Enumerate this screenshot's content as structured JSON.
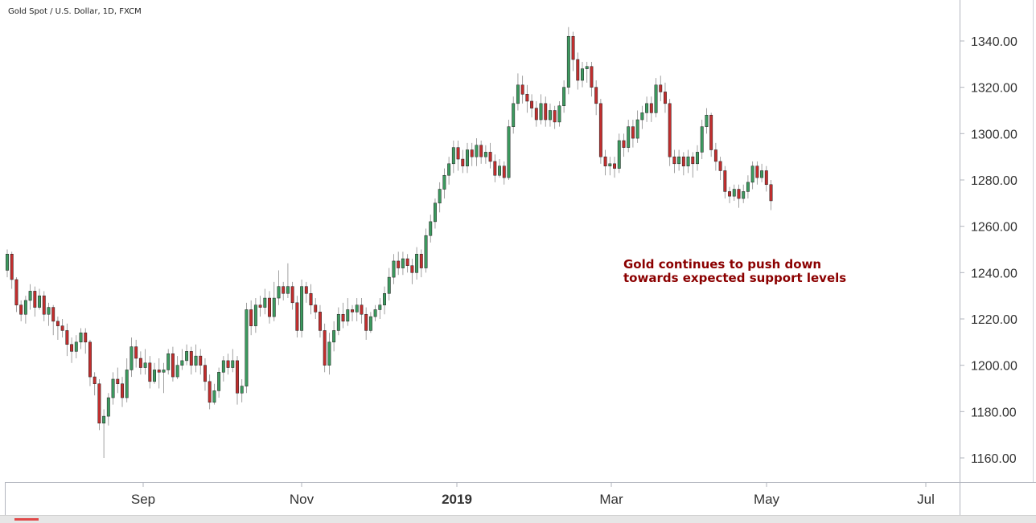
{
  "header": {
    "title": "Gold Spot / U.S. Dollar, 1D, FXCM"
  },
  "annotation": {
    "line1": "Gold continues to push down",
    "line2": "towards expected support levels"
  },
  "colors": {
    "up": "#3c9a5f",
    "down": "#c22e2e",
    "annotation": "#8b0000",
    "grid": "#f0f3fa",
    "axis": "#b2b5be"
  },
  "chart_data": {
    "type": "candlestick",
    "title": "Gold Spot / U.S. Dollar, 1D, FXCM",
    "ylim": [
      1150,
      1350
    ],
    "y_ticks": [
      "1340.00",
      "1320.00",
      "1300.00",
      "1280.00",
      "1260.00",
      "1240.00",
      "1220.00",
      "1200.00",
      "1180.00",
      "1160.00"
    ],
    "x_ticks": [
      "Sep",
      "Nov",
      "2019",
      "Mar",
      "May",
      "Jul"
    ],
    "grid": false,
    "annotations": [
      "Gold continues to push down towards expected support levels"
    ],
    "points": [
      [
        1241,
        1248,
        1250,
        1238
      ],
      [
        1248,
        1237,
        1249,
        1233
      ],
      [
        1237,
        1226,
        1238,
        1223
      ],
      [
        1226,
        1222,
        1228,
        1219
      ],
      [
        1222,
        1228,
        1230,
        1218
      ],
      [
        1228,
        1232,
        1235,
        1224
      ],
      [
        1232,
        1225,
        1234,
        1221
      ],
      [
        1225,
        1230,
        1233,
        1224
      ],
      [
        1230,
        1222,
        1232,
        1219
      ],
      [
        1222,
        1225,
        1227,
        1217
      ],
      [
        1225,
        1219,
        1226,
        1213
      ],
      [
        1219,
        1217,
        1221,
        1211
      ],
      [
        1217,
        1215,
        1220,
        1212
      ],
      [
        1215,
        1209,
        1218,
        1204
      ],
      [
        1209,
        1206,
        1212,
        1201
      ],
      [
        1206,
        1210,
        1213,
        1203
      ],
      [
        1210,
        1214,
        1216,
        1207
      ],
      [
        1214,
        1210,
        1216,
        1205
      ],
      [
        1210,
        1195,
        1211,
        1191
      ],
      [
        1195,
        1192,
        1197,
        1187
      ],
      [
        1192,
        1175,
        1194,
        1172
      ],
      [
        1175,
        1178,
        1181,
        1160
      ],
      [
        1178,
        1186,
        1188,
        1174
      ],
      [
        1186,
        1194,
        1197,
        1183
      ],
      [
        1194,
        1192,
        1199,
        1188
      ],
      [
        1192,
        1186,
        1195,
        1182
      ],
      [
        1186,
        1198,
        1203,
        1184
      ],
      [
        1198,
        1208,
        1212,
        1195
      ],
      [
        1208,
        1203,
        1211,
        1199
      ],
      [
        1203,
        1199,
        1206,
        1196
      ],
      [
        1199,
        1201,
        1207,
        1196
      ],
      [
        1201,
        1193,
        1204,
        1190
      ],
      [
        1193,
        1198,
        1201,
        1192
      ],
      [
        1198,
        1197,
        1203,
        1190
      ],
      [
        1197,
        1198,
        1201,
        1188
      ],
      [
        1198,
        1205,
        1207,
        1196
      ],
      [
        1205,
        1195,
        1208,
        1193
      ],
      [
        1195,
        1200,
        1204,
        1194
      ],
      [
        1200,
        1202,
        1207,
        1198
      ],
      [
        1202,
        1206,
        1209,
        1200
      ],
      [
        1206,
        1200,
        1208,
        1196
      ],
      [
        1200,
        1204,
        1209,
        1197
      ],
      [
        1204,
        1200,
        1207,
        1196
      ],
      [
        1200,
        1193,
        1203,
        1189
      ],
      [
        1193,
        1184,
        1196,
        1181
      ],
      [
        1184,
        1189,
        1192,
        1183
      ],
      [
        1189,
        1197,
        1199,
        1186
      ],
      [
        1197,
        1202,
        1204,
        1193
      ],
      [
        1202,
        1199,
        1205,
        1196
      ],
      [
        1199,
        1202,
        1207,
        1197
      ],
      [
        1202,
        1188,
        1204,
        1183
      ],
      [
        1188,
        1191,
        1194,
        1184
      ],
      [
        1191,
        1224,
        1227,
        1188
      ],
      [
        1224,
        1217,
        1228,
        1213
      ],
      [
        1217,
        1226,
        1229,
        1214
      ],
      [
        1226,
        1225,
        1230,
        1221
      ],
      [
        1225,
        1229,
        1233,
        1222
      ],
      [
        1229,
        1221,
        1232,
        1218
      ],
      [
        1221,
        1229,
        1236,
        1219
      ],
      [
        1229,
        1234,
        1241,
        1226
      ],
      [
        1234,
        1231,
        1236,
        1228
      ],
      [
        1231,
        1234,
        1244,
        1229
      ],
      [
        1234,
        1227,
        1236,
        1224
      ],
      [
        1227,
        1215,
        1230,
        1212
      ],
      [
        1215,
        1234,
        1237,
        1212
      ],
      [
        1234,
        1231,
        1236,
        1227
      ],
      [
        1231,
        1226,
        1235,
        1222
      ],
      [
        1226,
        1223,
        1229,
        1220
      ],
      [
        1223,
        1215,
        1226,
        1212
      ],
      [
        1215,
        1200,
        1218,
        1197
      ],
      [
        1200,
        1210,
        1214,
        1196
      ],
      [
        1210,
        1215,
        1219,
        1206
      ],
      [
        1215,
        1222,
        1225,
        1213
      ],
      [
        1222,
        1219,
        1227,
        1216
      ],
      [
        1219,
        1224,
        1229,
        1217
      ],
      [
        1224,
        1223,
        1226,
        1219
      ],
      [
        1223,
        1226,
        1229,
        1219
      ],
      [
        1226,
        1222,
        1229,
        1218
      ],
      [
        1222,
        1215,
        1225,
        1211
      ],
      [
        1215,
        1221,
        1223,
        1214
      ],
      [
        1221,
        1224,
        1226,
        1219
      ],
      [
        1224,
        1226,
        1229,
        1220
      ],
      [
        1226,
        1231,
        1234,
        1222
      ],
      [
        1231,
        1238,
        1242,
        1228
      ],
      [
        1238,
        1245,
        1248,
        1235
      ],
      [
        1245,
        1242,
        1249,
        1239
      ],
      [
        1242,
        1246,
        1249,
        1239
      ],
      [
        1246,
        1243,
        1248,
        1240
      ],
      [
        1243,
        1240,
        1246,
        1235
      ],
      [
        1240,
        1248,
        1251,
        1237
      ],
      [
        1248,
        1242,
        1250,
        1238
      ],
      [
        1242,
        1256,
        1259,
        1240
      ],
      [
        1256,
        1262,
        1265,
        1253
      ],
      [
        1262,
        1270,
        1272,
        1259
      ],
      [
        1270,
        1276,
        1279,
        1266
      ],
      [
        1276,
        1282,
        1285,
        1272
      ],
      [
        1282,
        1287,
        1290,
        1278
      ],
      [
        1287,
        1294,
        1297,
        1283
      ],
      [
        1294,
        1289,
        1297,
        1284
      ],
      [
        1289,
        1286,
        1293,
        1283
      ],
      [
        1286,
        1293,
        1296,
        1283
      ],
      [
        1293,
        1290,
        1296,
        1286
      ],
      [
        1290,
        1295,
        1298,
        1286
      ],
      [
        1295,
        1290,
        1297,
        1287
      ],
      [
        1290,
        1292,
        1295,
        1287
      ],
      [
        1292,
        1288,
        1296,
        1285
      ],
      [
        1288,
        1282,
        1291,
        1279
      ],
      [
        1282,
        1286,
        1289,
        1281
      ],
      [
        1286,
        1281,
        1288,
        1278
      ],
      [
        1281,
        1303,
        1306,
        1280
      ],
      [
        1303,
        1313,
        1316,
        1300
      ],
      [
        1313,
        1321,
        1326,
        1310
      ],
      [
        1321,
        1317,
        1325,
        1313
      ],
      [
        1317,
        1314,
        1321,
        1309
      ],
      [
        1314,
        1311,
        1317,
        1307
      ],
      [
        1311,
        1306,
        1314,
        1303
      ],
      [
        1306,
        1313,
        1317,
        1304
      ],
      [
        1313,
        1306,
        1316,
        1303
      ],
      [
        1306,
        1310,
        1313,
        1303
      ],
      [
        1310,
        1305,
        1312,
        1302
      ],
      [
        1305,
        1312,
        1314,
        1303
      ],
      [
        1312,
        1320,
        1323,
        1309
      ],
      [
        1320,
        1342,
        1346,
        1317
      ],
      [
        1342,
        1332,
        1344,
        1327
      ],
      [
        1332,
        1323,
        1335,
        1319
      ],
      [
        1323,
        1328,
        1331,
        1320
      ],
      [
        1328,
        1329,
        1331,
        1322
      ],
      [
        1329,
        1320,
        1331,
        1316
      ],
      [
        1320,
        1313,
        1323,
        1308
      ],
      [
        1313,
        1290,
        1315,
        1287
      ],
      [
        1290,
        1286,
        1293,
        1282
      ],
      [
        1286,
        1287,
        1290,
        1282
      ],
      [
        1287,
        1285,
        1290,
        1281
      ],
      [
        1285,
        1297,
        1300,
        1283
      ],
      [
        1297,
        1294,
        1300,
        1290
      ],
      [
        1294,
        1303,
        1306,
        1292
      ],
      [
        1303,
        1298,
        1306,
        1294
      ],
      [
        1298,
        1306,
        1310,
        1296
      ],
      [
        1306,
        1309,
        1312,
        1302
      ],
      [
        1309,
        1313,
        1316,
        1305
      ],
      [
        1313,
        1309,
        1316,
        1305
      ],
      [
        1309,
        1321,
        1324,
        1307
      ],
      [
        1321,
        1318,
        1325,
        1314
      ],
      [
        1318,
        1313,
        1322,
        1309
      ],
      [
        1313,
        1290,
        1315,
        1286
      ],
      [
        1290,
        1287,
        1293,
        1283
      ],
      [
        1287,
        1290,
        1293,
        1284
      ],
      [
        1290,
        1286,
        1292,
        1282
      ],
      [
        1286,
        1290,
        1293,
        1283
      ],
      [
        1290,
        1287,
        1292,
        1281
      ],
      [
        1287,
        1292,
        1295,
        1284
      ],
      [
        1292,
        1303,
        1306,
        1289
      ],
      [
        1303,
        1308,
        1311,
        1300
      ],
      [
        1308,
        1293,
        1309,
        1290
      ],
      [
        1293,
        1288,
        1296,
        1284
      ],
      [
        1288,
        1284,
        1290,
        1280
      ],
      [
        1284,
        1275,
        1286,
        1272
      ],
      [
        1275,
        1273,
        1277,
        1270
      ],
      [
        1273,
        1276,
        1278,
        1271
      ],
      [
        1276,
        1272,
        1278,
        1268
      ],
      [
        1272,
        1275,
        1278,
        1270
      ],
      [
        1275,
        1279,
        1282,
        1272
      ],
      [
        1279,
        1286,
        1288,
        1276
      ],
      [
        1286,
        1281,
        1288,
        1278
      ],
      [
        1281,
        1284,
        1287,
        1279
      ],
      [
        1284,
        1278,
        1286,
        1275
      ],
      [
        1278,
        1271,
        1280,
        1267
      ]
    ]
  }
}
